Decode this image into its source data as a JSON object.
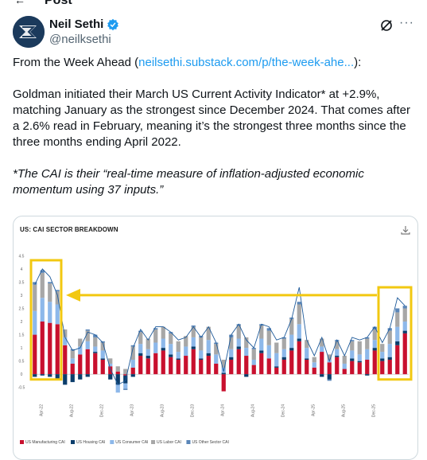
{
  "page": {
    "back_label": "←",
    "title": "Post"
  },
  "author": {
    "display_name": "Neil Sethi",
    "handle": "@neilksethi"
  },
  "tweet": {
    "p1_prefix": "From the Week Ahead (",
    "p1_link": "neilsethi.substack.com/p/the-week-ahe...",
    "p1_suffix": "):",
    "p2": "Goldman initiated their March US Current Activity Indicator* at +2.9%, matching January as the strongest since December 2024.  That comes after a 2.6% read in February, meaning it’s the strongest three months since the three months ending April 2022.",
    "p3": "*The CAI is their “real-time measure of inflation-adjusted economic momentum using 37 inputs.”"
  },
  "card": {
    "title": "US: CAI SECTOR BREAKDOWN"
  },
  "colors": {
    "manufacturing": "#c8102e",
    "housing": "#0b3d6b",
    "consumer": "#8db8ea",
    "labor": "#a7a7a7",
    "other": "#5a86b8",
    "line": "#1e5a9a",
    "highlight": "#f2c811",
    "link": "#1d9bf0"
  },
  "chart_data": {
    "type": "bar",
    "stacked": true,
    "yticks": [
      "4.5",
      "4",
      "3.5",
      "3",
      "2.5",
      "2",
      "1.5",
      "1",
      "0.5",
      "0",
      "-0.5"
    ],
    "ylim": [
      -0.75,
      4.6
    ],
    "xticks": [
      "Apr-22",
      "Aug-22",
      "Dec-22",
      "Apr-23",
      "Aug-23",
      "Dec-23",
      "Apr-24",
      "Aug-24",
      "Dec-24",
      "Apr-25",
      "Aug-25",
      "Dec-25"
    ],
    "months_per_tick": 4,
    "categories_count": 50,
    "series": [
      {
        "name": "US Manufacturing CAI",
        "key": "manufacturing",
        "values": [
          1.5,
          2.0,
          1.95,
          1.9,
          1.1,
          0.4,
          0.75,
          0.95,
          0.8,
          0.55,
          0.3,
          0.1,
          -0.05,
          0.25,
          0.7,
          0.6,
          0.8,
          0.9,
          0.65,
          0.55,
          0.7,
          0.95,
          0.55,
          0.7,
          0.4,
          -0.65,
          0.55,
          0.95,
          0.7,
          0.35,
          0.8,
          0.6,
          0.25,
          0.55,
          0.9,
          1.25,
          0.55,
          0.25,
          0.85,
          0.45,
          0.65,
          0.2,
          0.5,
          0.45,
          0.55,
          0.9,
          0.5,
          0.55,
          1.1,
          1.55
        ]
      },
      {
        "name": "US Housing CAI",
        "key": "housing",
        "values": [
          -0.1,
          -0.05,
          -0.1,
          -0.2,
          -0.4,
          -0.3,
          -0.2,
          -0.1,
          0.05,
          0.05,
          -0.2,
          -0.4,
          -0.3,
          -0.1,
          0.1,
          0.1,
          0.0,
          0.1,
          0.1,
          0.05,
          0.0,
          0.1,
          0.05,
          0.1,
          0.0,
          0.05,
          0.1,
          0.1,
          -0.1,
          0.0,
          0.1,
          0.0,
          0.05,
          0.1,
          0.1,
          0.1,
          0.05,
          0.0,
          -0.1,
          -0.2,
          0.05,
          0.0,
          0.1,
          0.05,
          -0.05,
          0.1,
          0.1,
          0.1,
          0.15,
          0.1
        ]
      },
      {
        "name": "US Consumer CAI",
        "key": "consumer",
        "values": [
          0.9,
          0.9,
          0.8,
          0.75,
          0.3,
          0.2,
          0.3,
          0.3,
          0.2,
          0.3,
          0.1,
          -0.3,
          -0.2,
          0.3,
          0.35,
          0.25,
          0.4,
          0.35,
          0.4,
          0.25,
          0.35,
          0.35,
          0.3,
          0.5,
          0.35,
          0.2,
          0.3,
          0.3,
          0.3,
          0.2,
          0.45,
          0.5,
          0.5,
          0.3,
          0.5,
          0.55,
          0.4,
          0.2,
          0.2,
          0.1,
          0.25,
          0.2,
          0.3,
          0.25,
          0.4,
          0.3,
          0.25,
          0.5,
          0.55,
          0.35
        ]
      },
      {
        "name": "US Labor CAI",
        "key": "labor",
        "values": [
          1.0,
          0.95,
          0.7,
          0.5,
          0.3,
          0.3,
          0.3,
          0.4,
          0.35,
          0.3,
          0.2,
          0.2,
          0.2,
          0.5,
          0.45,
          0.4,
          0.5,
          0.45,
          0.4,
          0.4,
          0.4,
          0.4,
          0.5,
          0.5,
          0.4,
          0.3,
          0.45,
          0.5,
          0.4,
          0.4,
          0.5,
          0.55,
          0.4,
          0.4,
          0.6,
          0.75,
          0.3,
          0.2,
          0.3,
          0.2,
          0.3,
          0.3,
          0.35,
          0.5,
          0.4,
          0.4,
          0.3,
          0.5,
          0.55,
          0.5
        ]
      },
      {
        "name": "US Other Sector CAI",
        "key": "other",
        "values": [
          0.1,
          0.1,
          0.05,
          0.05,
          0.0,
          0.05,
          0.0,
          0.05,
          0.1,
          0.05,
          0.0,
          0.0,
          -0.05,
          0.05,
          0.05,
          0.0,
          0.05,
          0.0,
          0.05,
          0.0,
          0.0,
          0.05,
          0.05,
          0.0,
          0.05,
          0.0,
          0.1,
          0.05,
          0.0,
          0.05,
          0.05,
          0.1,
          0.0,
          0.05,
          0.05,
          0.1,
          0.0,
          0.0,
          0.0,
          -0.05,
          0.05,
          0.0,
          0.05,
          0.0,
          0.05,
          0.1,
          0.0,
          0.1,
          0.15,
          0.1
        ]
      }
    ],
    "line_values": [
      3.4,
      4.0,
      3.7,
      3.0,
      1.4,
      0.9,
      1.0,
      1.6,
      1.5,
      1.2,
      0.2,
      -0.4,
      -0.25,
      1.0,
      1.7,
      1.3,
      1.8,
      1.8,
      1.6,
      1.3,
      1.4,
      1.8,
      1.4,
      1.8,
      1.2,
      0.1,
      1.5,
      1.9,
      1.3,
      1.0,
      1.9,
      1.8,
      1.3,
      1.4,
      2.1,
      3.3,
      1.3,
      0.7,
      1.4,
      0.5,
      1.3,
      0.7,
      1.4,
      1.3,
      1.4,
      1.8,
      1.2,
      1.75,
      2.9,
      2.6
    ]
  }
}
